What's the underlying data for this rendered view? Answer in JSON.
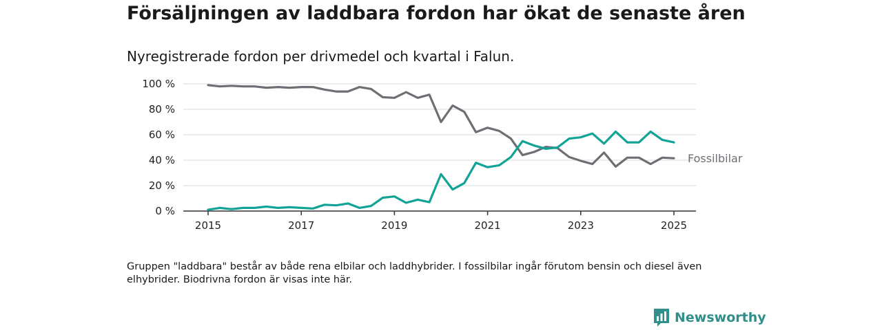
{
  "title": "Försäljningen av laddbara fordon har ökat de senaste åren",
  "subtitle": "Nyregistrerade fordon per drivmedel och kvartal i Falun.",
  "footnote": "Gruppen \"laddbara\" består av både rena elbilar och laddhybrider. I fossilbilar ingår förutom bensin och diesel även elhybrider. Biodrivna fordon är visas inte här.",
  "logo": {
    "text": "Newsworthy",
    "icon": "newsworthy-chart-icon"
  },
  "colors": {
    "fossil": "#6f6e74",
    "laddbara": "#11a396",
    "grid": "#d9d9d9",
    "axis": "#333333"
  },
  "chart_data": {
    "type": "line",
    "x_start": "2015-Q1",
    "x_ticks": [
      2015,
      2017,
      2019,
      2021,
      2023,
      2025
    ],
    "x_tick_labels": [
      "2015",
      "2017",
      "2019",
      "2021",
      "2023",
      "2025"
    ],
    "xlim": [
      2014.75,
      2025.5
    ],
    "y_ticks": [
      0,
      20,
      40,
      60,
      80,
      100
    ],
    "y_tick_labels": [
      "0 %",
      "20 %",
      "40 %",
      "60 %",
      "80 %",
      "100 %"
    ],
    "ylim": [
      0,
      100
    ],
    "grid": true,
    "series": [
      {
        "name": "Fossilbilar",
        "color": "#6f6e74",
        "values": [
          99,
          98,
          98.5,
          98,
          98,
          97,
          97.5,
          97,
          97.5,
          97.5,
          95.5,
          94,
          94,
          97.5,
          96,
          89.5,
          89,
          93.5,
          89,
          91.5,
          70,
          83,
          78,
          62,
          65.5,
          63,
          57,
          44,
          46.5,
          50.5,
          49.5,
          42.5,
          39.5,
          37,
          46,
          35,
          42,
          42,
          37,
          42,
          41.5
        ]
      },
      {
        "color": "#11a396",
        "values": [
          1,
          2.5,
          1.5,
          2.5,
          2.5,
          3.5,
          2.5,
          3,
          2.5,
          2,
          5,
          4.5,
          6,
          2.5,
          4,
          10.5,
          11.5,
          6.5,
          9,
          7,
          29,
          17,
          22,
          38,
          34.5,
          36,
          42.5,
          55,
          51.5,
          49,
          50,
          57,
          58,
          61,
          53,
          62.5,
          54,
          54,
          62.5,
          56,
          54
        ]
      }
    ]
  }
}
